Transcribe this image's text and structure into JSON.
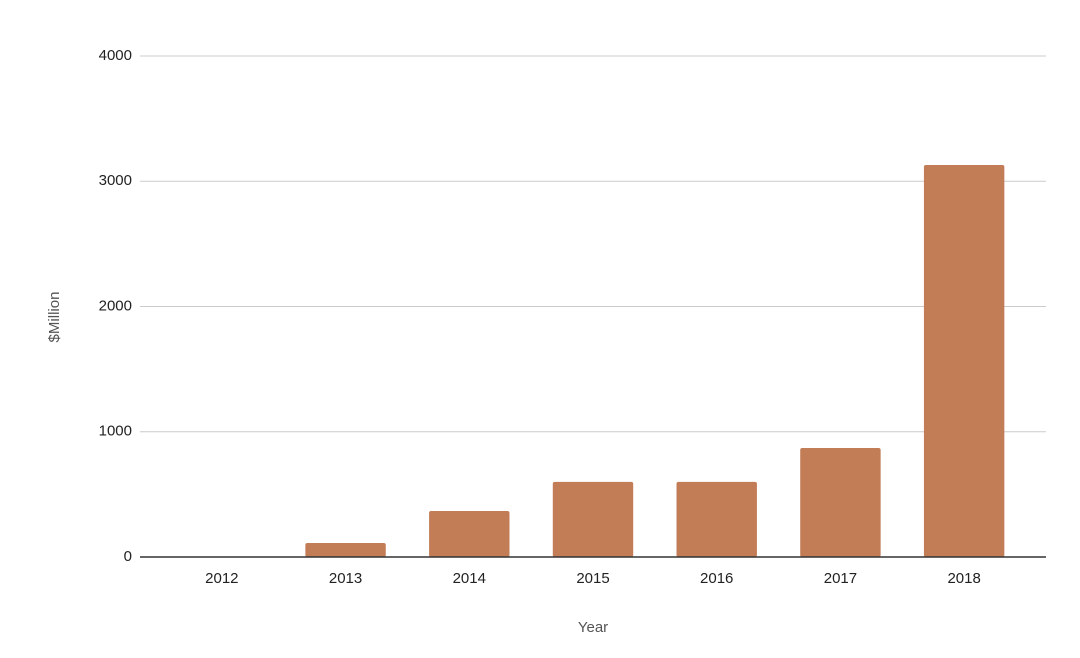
{
  "chart_data": {
    "type": "bar",
    "x_label": "Year",
    "y_label": "$Million",
    "categories": [
      "2012",
      "2013",
      "2014",
      "2015",
      "2016",
      "2017",
      "2018"
    ],
    "values": [
      0,
      112,
      367,
      600,
      600,
      870,
      3130
    ],
    "color": "#c27c56",
    "ylim": [
      0,
      4000
    ],
    "yticks": [
      0,
      1000,
      2000,
      3000,
      4000
    ],
    "grid": true
  }
}
